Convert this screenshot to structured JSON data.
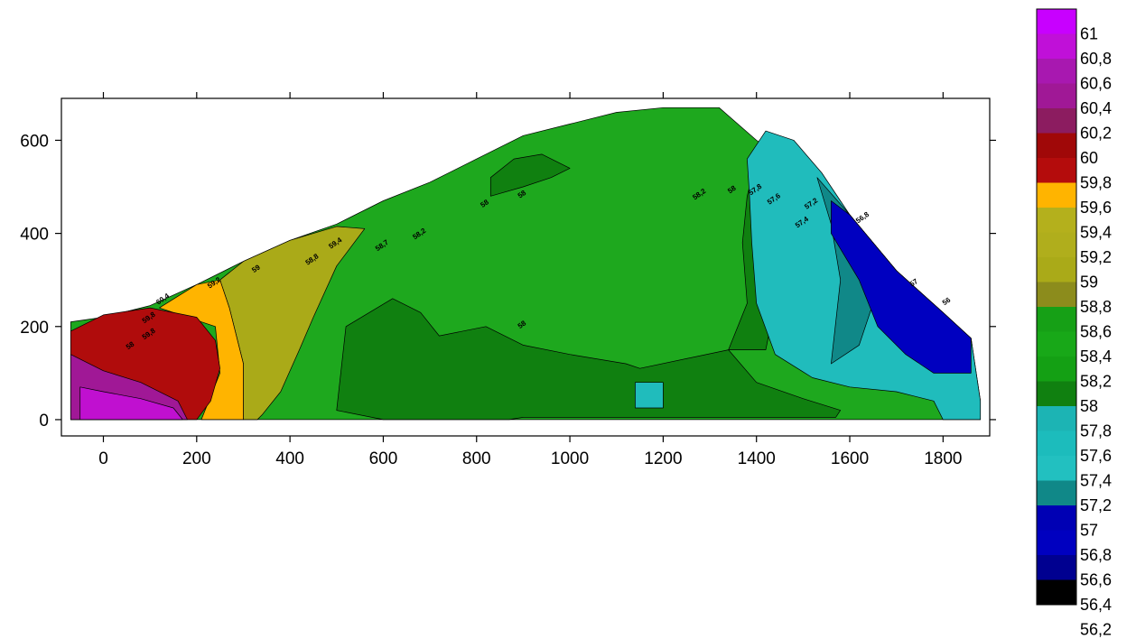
{
  "chart_data": {
    "type": "heatmap",
    "subtype": "filled-contour",
    "title": "",
    "xlabel": "",
    "ylabel": "",
    "xlim": [
      -90,
      1900
    ],
    "ylim": [
      -35,
      690
    ],
    "x_ticks": [
      0,
      200,
      400,
      600,
      800,
      1000,
      1200,
      1400,
      1600,
      1800
    ],
    "y_ticks": [
      0,
      200,
      400,
      600
    ],
    "grid": false,
    "legend_position": "right",
    "color_scale": [
      {
        "label": "61",
        "color": "#c800ff"
      },
      {
        "label": "60,8",
        "color": "#c010d8"
      },
      {
        "label": "60,6",
        "color": "#a818b0"
      },
      {
        "label": "60,4",
        "color": "#a01896"
      },
      {
        "label": "60,2",
        "color": "#8c1c60"
      },
      {
        "label": "60",
        "color": "#a00808"
      },
      {
        "label": "59,8",
        "color": "#b40c0c"
      },
      {
        "label": "59,6",
        "color": "#ffb400"
      },
      {
        "label": "59,4",
        "color": "#b4b01c"
      },
      {
        "label": "59,2",
        "color": "#b0ae1c"
      },
      {
        "label": "59",
        "color": "#aaaa18"
      },
      {
        "label": "58,8",
        "color": "#8c8c1c"
      },
      {
        "label": "58,6",
        "color": "#16a016"
      },
      {
        "label": "58,4",
        "color": "#18a818"
      },
      {
        "label": "58,2",
        "color": "#14a014"
      },
      {
        "label": "58",
        "color": "#108010"
      },
      {
        "label": "57,8",
        "color": "#1cb4b4"
      },
      {
        "label": "57,6",
        "color": "#1cbcbc"
      },
      {
        "label": "57,4",
        "color": "#22c0c0"
      },
      {
        "label": "57,2",
        "color": "#108888"
      },
      {
        "label": "57",
        "color": "#0000b4"
      },
      {
        "label": "56,8",
        "color": "#0000c0"
      },
      {
        "label": "56,6",
        "color": "#000090"
      },
      {
        "label": "56,4",
        "color": "#000000"
      },
      {
        "label": "56,2",
        "color": ""
      }
    ],
    "regions": [
      {
        "level": 58.4,
        "color": "#1ea81e",
        "polygon": [
          [
            -70,
            0
          ],
          [
            -70,
            210
          ],
          [
            0,
            220
          ],
          [
            100,
            245
          ],
          [
            200,
            290
          ],
          [
            300,
            340
          ],
          [
            400,
            385
          ],
          [
            500,
            420
          ],
          [
            600,
            470
          ],
          [
            700,
            510
          ],
          [
            800,
            560
          ],
          [
            900,
            610
          ],
          [
            1000,
            635
          ],
          [
            1100,
            660
          ],
          [
            1200,
            670
          ],
          [
            1320,
            670
          ],
          [
            1400,
            600
          ],
          [
            1500,
            530
          ],
          [
            1600,
            440
          ],
          [
            1700,
            320
          ],
          [
            1800,
            230
          ],
          [
            1860,
            175
          ],
          [
            1880,
            40
          ],
          [
            1880,
            0
          ]
        ]
      },
      {
        "level": 58.6,
        "color": "#aaaa18",
        "polygon": [
          [
            250,
            300
          ],
          [
            300,
            340
          ],
          [
            400,
            385
          ],
          [
            500,
            415
          ],
          [
            560,
            410
          ],
          [
            500,
            330
          ],
          [
            450,
            220
          ],
          [
            420,
            150
          ],
          [
            380,
            60
          ],
          [
            340,
            10
          ],
          [
            330,
            0
          ],
          [
            300,
            0
          ],
          [
            300,
            120
          ],
          [
            270,
            240
          ]
        ]
      },
      {
        "level": 59.6,
        "color": "#ffb400",
        "polygon": [
          [
            120,
            240
          ],
          [
            200,
            290
          ],
          [
            250,
            300
          ],
          [
            270,
            240
          ],
          [
            300,
            120
          ],
          [
            300,
            0
          ],
          [
            210,
            0
          ],
          [
            250,
            100
          ],
          [
            240,
            200
          ]
        ]
      },
      {
        "level": 59.8,
        "color": "#b00c0c",
        "polygon": [
          [
            -70,
            0
          ],
          [
            -70,
            190
          ],
          [
            0,
            225
          ],
          [
            100,
            240
          ],
          [
            200,
            220
          ],
          [
            240,
            170
          ],
          [
            250,
            110
          ],
          [
            230,
            40
          ],
          [
            200,
            0
          ]
        ]
      },
      {
        "level": 60.4,
        "color": "#a01896",
        "polygon": [
          [
            -70,
            0
          ],
          [
            -70,
            140
          ],
          [
            0,
            105
          ],
          [
            80,
            80
          ],
          [
            160,
            40
          ],
          [
            180,
            0
          ]
        ]
      },
      {
        "level": 60.8,
        "color": "#c010d0",
        "polygon": [
          [
            -50,
            0
          ],
          [
            -50,
            70
          ],
          [
            0,
            60
          ],
          [
            80,
            45
          ],
          [
            150,
            25
          ],
          [
            170,
            0
          ]
        ]
      },
      {
        "level": 58.0,
        "color": "#108010",
        "polygon": [
          [
            500,
            20
          ],
          [
            520,
            200
          ],
          [
            620,
            260
          ],
          [
            680,
            230
          ],
          [
            720,
            180
          ],
          [
            820,
            200
          ],
          [
            900,
            160
          ],
          [
            1000,
            140
          ],
          [
            1120,
            120
          ],
          [
            1150,
            110
          ],
          [
            1340,
            150
          ],
          [
            1400,
            80
          ],
          [
            1500,
            45
          ],
          [
            1580,
            20
          ],
          [
            1570,
            5
          ],
          [
            900,
            5
          ],
          [
            870,
            0
          ],
          [
            600,
            0
          ]
        ]
      },
      {
        "level": 58.0,
        "color": "#108010",
        "polygon": [
          [
            830,
            480
          ],
          [
            900,
            500
          ],
          [
            960,
            520
          ],
          [
            1000,
            540
          ],
          [
            940,
            570
          ],
          [
            880,
            560
          ],
          [
            830,
            520
          ]
        ]
      },
      {
        "level": 58.0,
        "color": "#108010",
        "polygon": [
          [
            1340,
            150
          ],
          [
            1380,
            250
          ],
          [
            1370,
            380
          ],
          [
            1380,
            480
          ],
          [
            1400,
            560
          ],
          [
            1420,
            520
          ],
          [
            1430,
            360
          ],
          [
            1440,
            250
          ],
          [
            1420,
            150
          ]
        ]
      },
      {
        "level": 57.6,
        "color": "#20bcbc",
        "polygon": [
          [
            1380,
            560
          ],
          [
            1420,
            620
          ],
          [
            1480,
            600
          ],
          [
            1540,
            530
          ],
          [
            1600,
            440
          ],
          [
            1700,
            320
          ],
          [
            1800,
            230
          ],
          [
            1860,
            175
          ],
          [
            1880,
            40
          ],
          [
            1880,
            0
          ],
          [
            1800,
            0
          ],
          [
            1780,
            40
          ],
          [
            1700,
            60
          ],
          [
            1600,
            70
          ],
          [
            1520,
            90
          ],
          [
            1440,
            140
          ],
          [
            1400,
            250
          ],
          [
            1390,
            380
          ],
          [
            1385,
            480
          ]
        ]
      },
      {
        "level": 57.6,
        "color": "#20bcbc",
        "polygon": [
          [
            1140,
            80
          ],
          [
            1200,
            80
          ],
          [
            1200,
            25
          ],
          [
            1140,
            25
          ]
        ]
      },
      {
        "level": 57.2,
        "color": "#108888",
        "polygon": [
          [
            1530,
            520
          ],
          [
            1600,
            440
          ],
          [
            1700,
            320
          ],
          [
            1780,
            240
          ],
          [
            1700,
            260
          ],
          [
            1650,
            250
          ],
          [
            1620,
            160
          ],
          [
            1560,
            120
          ],
          [
            1580,
            300
          ],
          [
            1560,
            420
          ]
        ]
      },
      {
        "level": 56.8,
        "color": "#0000c0",
        "polygon": [
          [
            1560,
            470
          ],
          [
            1600,
            440
          ],
          [
            1700,
            320
          ],
          [
            1800,
            230
          ],
          [
            1860,
            175
          ],
          [
            1860,
            100
          ],
          [
            1780,
            100
          ],
          [
            1720,
            140
          ],
          [
            1660,
            200
          ],
          [
            1620,
            300
          ],
          [
            1560,
            400
          ]
        ]
      }
    ],
    "contour_labels": [
      {
        "text": "58",
        "x": 60,
        "y": 155
      },
      {
        "text": "59,8",
        "x": 100,
        "y": 180
      },
      {
        "text": "59,8",
        "x": 100,
        "y": 215
      },
      {
        "text": "60,4",
        "x": 130,
        "y": 255
      },
      {
        "text": "59,2",
        "x": 240,
        "y": 290
      },
      {
        "text": "59",
        "x": 330,
        "y": 320
      },
      {
        "text": "58,8",
        "x": 450,
        "y": 340
      },
      {
        "text": "59,4",
        "x": 500,
        "y": 375
      },
      {
        "text": "58,7",
        "x": 600,
        "y": 370
      },
      {
        "text": "58,2",
        "x": 680,
        "y": 395
      },
      {
        "text": "58",
        "x": 820,
        "y": 460
      },
      {
        "text": "58",
        "x": 900,
        "y": 480
      },
      {
        "text": "58",
        "x": 900,
        "y": 200
      },
      {
        "text": "58,2",
        "x": 1280,
        "y": 480
      },
      {
        "text": "58",
        "x": 1350,
        "y": 490
      },
      {
        "text": "57,8",
        "x": 1400,
        "y": 490
      },
      {
        "text": "57,6",
        "x": 1440,
        "y": 470
      },
      {
        "text": "57,4",
        "x": 1500,
        "y": 420
      },
      {
        "text": "57,2",
        "x": 1520,
        "y": 460
      },
      {
        "text": "56,8",
        "x": 1630,
        "y": 430
      },
      {
        "text": "57",
        "x": 1740,
        "y": 290
      },
      {
        "text": "56",
        "x": 1810,
        "y": 250
      }
    ]
  }
}
